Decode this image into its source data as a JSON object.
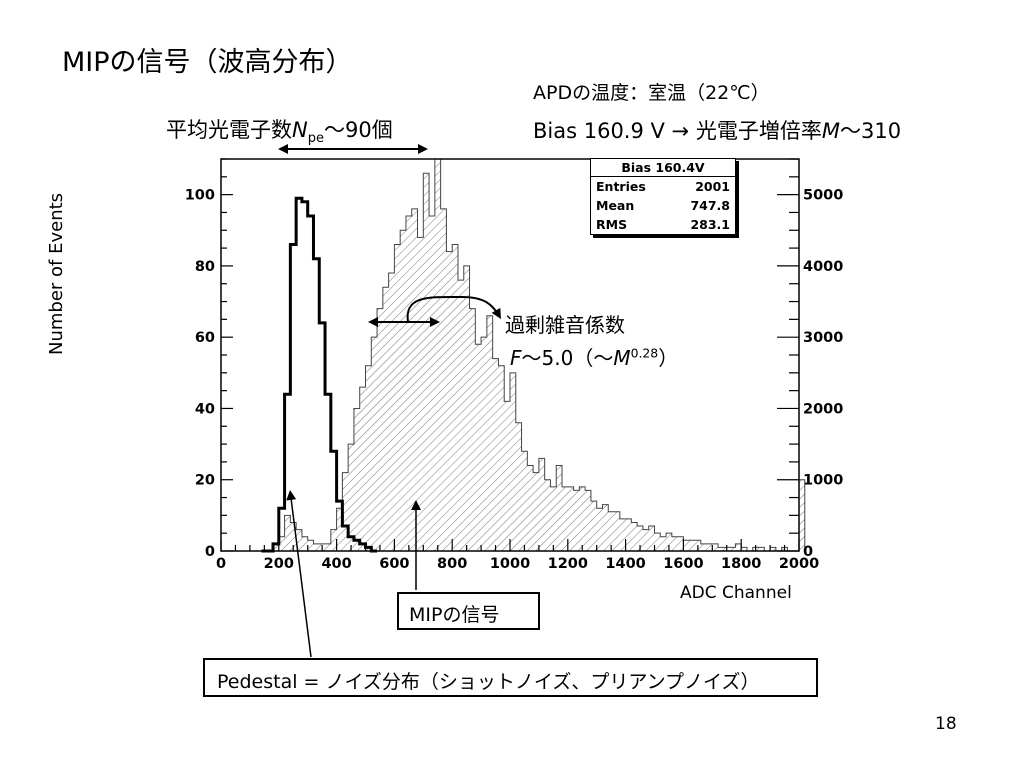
{
  "slide": {
    "title": "MIPの信号（波高分布）",
    "number": "18"
  },
  "annotations": {
    "temperature": "APDの温度：室温（22℃）",
    "bias_prefix": "Bias 160.9 V → 光電子増倍率",
    "bias_m": "M",
    "bias_suffix": "～310",
    "npe_prefix": "平均光電子数",
    "npe_n": "N",
    "npe_sub": "pe",
    "npe_suffix": "～90個",
    "noise_title": "過剰雑音係数",
    "noise_f": "F",
    "noise_mid": "～5.0（～",
    "noise_m": "M",
    "noise_exp": "0.28",
    "noise_end": "）",
    "mip_label": "MIPの信号",
    "pedestal_label": "Pedestal = ノイズ分布（ショットノイズ、プリアンプノイズ）"
  },
  "stats_box": {
    "title": "Bias 160.4V",
    "rows": [
      {
        "label": "Entries",
        "value": "2001"
      },
      {
        "label": "Mean",
        "value": "747.8"
      },
      {
        "label": "RMS",
        "value": "283.1"
      }
    ]
  },
  "chart_data": {
    "type": "histogram",
    "xlabel": "ADC Channel",
    "ylabel": "Number of Events",
    "xlim": [
      0,
      2000
    ],
    "ylim_left": [
      0,
      110
    ],
    "ylim_right": [
      0,
      5500
    ],
    "x_ticks": [
      0,
      200,
      400,
      600,
      800,
      1000,
      1200,
      1400,
      1600,
      1800,
      2000
    ],
    "y_ticks_left": [
      0,
      20,
      40,
      60,
      80,
      100
    ],
    "y_ticks_right": [
      0,
      1000,
      2000,
      3000,
      4000,
      5000
    ],
    "bin_width": 20,
    "series": [
      {
        "label": "Pedestal",
        "axis": "left",
        "style": "thick-outline",
        "x_start": 140,
        "values": [
          0,
          0,
          2,
          12,
          44,
          86,
          99,
          98,
          94,
          82,
          64,
          44,
          28,
          14,
          7,
          4,
          3,
          2,
          1,
          0
        ]
      },
      {
        "label": "MIP signal",
        "axis": "right",
        "style": "hatched",
        "x_start": 140,
        "values": [
          0,
          0,
          100,
          200,
          500,
          400,
          300,
          200,
          150,
          100,
          100,
          100,
          300,
          600,
          1100,
          1500,
          2000,
          2300,
          2600,
          3000,
          3400,
          3700,
          3900,
          4300,
          4500,
          4700,
          4800,
          4400,
          5300,
          4700,
          5500,
          4800,
          4200,
          4300,
          3800,
          4000,
          3400,
          2900,
          3000,
          3300,
          2700,
          2600,
          2100,
          2500,
          1800,
          1400,
          1200,
          1100,
          1300,
          1000,
          900,
          1200,
          900,
          900,
          850,
          900,
          850,
          700,
          600,
          650,
          550,
          550,
          450,
          450,
          400,
          350,
          300,
          350,
          250,
          200,
          250,
          200,
          200,
          150,
          150,
          150,
          100,
          100,
          100,
          50,
          50,
          50,
          100,
          50,
          0,
          50,
          50,
          0,
          50,
          0,
          50,
          0,
          0,
          1000
        ]
      }
    ]
  }
}
